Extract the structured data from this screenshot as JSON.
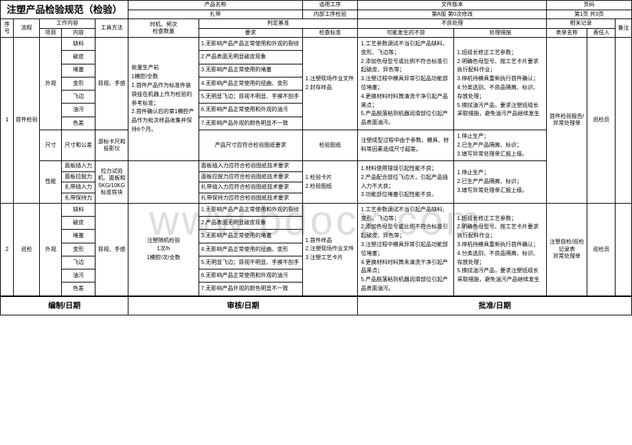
{
  "watermark": "www.bdocx.com",
  "title": "注塑产品检验规范（检验）",
  "header": {
    "r1c1": "产品名称",
    "r1c2": "适用工序",
    "r1c3": "文件版本",
    "r1c4": "页码",
    "r2c1": "扎带",
    "r2c2": "内部工序检验",
    "r2c3": "第A版 第0次修改",
    "r2c4": "第1页 共3页"
  },
  "colhead": {
    "seq": "序号",
    "flow": "流程",
    "work": "工作内容",
    "item": "项目",
    "content": "内容",
    "tool": "工具方法",
    "timing": "时机、频次\n检查数量",
    "criteria": "判定基准",
    "req": "要求",
    "std": "检查标准",
    "defect": "不良处理",
    "possible": "可能发生的不良",
    "measure": "处理措施",
    "record": "相关记录",
    "form": "表单名称",
    "person": "责任人",
    "remark": "备注"
  },
  "row1": {
    "seq": "1",
    "flow": "首件检验",
    "item_look": "外观",
    "look_items": [
      "缺料",
      "破皮",
      "堵塞",
      "变形",
      "飞边",
      "油污",
      "色差"
    ],
    "tool_look": "目视、手感",
    "timing1": "批量生产前\n1模腔/全数\n1.首件产品作为标准件装袋挂在机器上作为检验的参考标准；\n2.首件确认后的第1模腔产品作为批次样品收集并保持6个月。",
    "req": [
      "1.无影响产品产品正常使用和外观的裂纹",
      "2.产品表面无明显破皮现象",
      "3.无影响产品正常使用的堵塞",
      "4.无影响产品正常使用的扭曲、变形",
      "5.无明显飞边；目视不明显、手摸不刮手",
      "6.无影响产品正常使用和外观的油污",
      "7.无影响产品外观的颜色明显不一致"
    ],
    "std1": "1.注塑现场作业文件\n2.封存样品",
    "possible1": "1.工艺参数调试不当引起产品缺料、变形、飞边等；\n2.添加色母型号或比例不符合标准引起破皮、异色等；\n3.注塑过程中模具异常引起品功能部位堵塞；\n4.更换材料时料筒清洗干净引起产品黑点；\n5.产品脱落粘到机器润滑部位引起产品表面油污。",
    "measure1": "1.班组长修正工艺参数；\n2.明确色母型号、按工艺卡片要求执行配料作业；\n3.停机待模具重新执行首件确认；\n4.分类选别、不良品隔离、标识、存放处理；\n5.擦拭油污产品，要求注塑班组长采取措施，避免油污产品继续发生",
    "form1": "首件检验报告/异常处理单",
    "person1": "巡检员",
    "item_size": "尺寸",
    "size_content": "尺寸和公差",
    "size_tool": "游标卡尺和投影仪",
    "size_req": "产品尺寸应符合检验图纸要求",
    "size_std": "检验图纸",
    "size_possible": "注塑成型过程中由于参数、模具、材料等因素造成尺寸超差。",
    "size_measure": "1.停止生产；\n2.已生产产品隔离、标识；\n3.填写异常处理单汇报上级。",
    "item_perf": "性能",
    "perf_items": [
      "面板插入力",
      "面板拉脱力",
      "扎带插入力",
      "扎带保持力"
    ],
    "perf_tool": "拉力试验机、面板和5KG/10KG标准铁块",
    "perf_req": [
      "面板插入力应符合检验图纸技术要求",
      "面板拉脱力应符合检验图纸技术要求",
      "扎带插入力应符合检验图纸技术要求",
      "扎带保持力应符合检验图纸技术要求"
    ],
    "perf_std": "1.检验卡片\n2.检验图纸",
    "perf_possible": "1.材料使用错误引起性能不良；\n2.产品配合部位飞边大，引起产品插入力不大良；\n3.功能部位堵塞引起性能不良。",
    "perf_measure": "1.停止生产；\n2.已生产产品隔离、标识；\n3.填写异常处理单汇报上级。"
  },
  "row2": {
    "seq": "2",
    "flow": "巡检",
    "item_look": "外观",
    "look_items": [
      "缺料",
      "破皮",
      "堵塞",
      "变形",
      "飞边",
      "油污",
      "色差"
    ],
    "tool_look": "目视、手感",
    "timing": "注塑随机检验\n1次/h\n1模腔/次/全数",
    "req": [
      "1.无影响产品产品正常使用和外观的裂纹",
      "2.产品表面无明显破皮现象",
      "3.无影响产品正常使用的堵塞",
      "4.无影响产品正常使用的扭曲、变形",
      "5.无明显飞边；目视不明显、手摸不刮手",
      "6.无影响产品正常使用和外观的油污",
      "7.无影响产品外观的颜色明显不一致"
    ],
    "std": "1.首件样品\n2.注塑现场作业文件\n3.注塑工艺卡片",
    "possible": "1.工艺参数调试不当引起产品缺料、变形、飞边等；\n2.添加色母型号或比例不符合标准引起破皮、异色等；\n3.注塑过程中模具异常引起品功能部位堵塞；\n4.更换材料时料筒未清洗干净引起产品黑点；\n5.产品脱落粘到机器润滑部位引起产品表面油污。",
    "measure": "1.班组长修正工艺参数；\n2.明确色母型号、按工艺卡片要求执行配料作业；\n3.停机待模具重新执行首件确认；\n4.分类选别、不良品隔离、标识、存放处理；\n5.擦拭油污产品，要求注塑班组长采取措施，避免油污产品继续发生",
    "form": "注塑自检/巡检记录表\n异常处理单",
    "person": "巡检员"
  },
  "footer": {
    "edit": "编制/日期",
    "review": "审核/日期",
    "approve": "批准/日期"
  }
}
